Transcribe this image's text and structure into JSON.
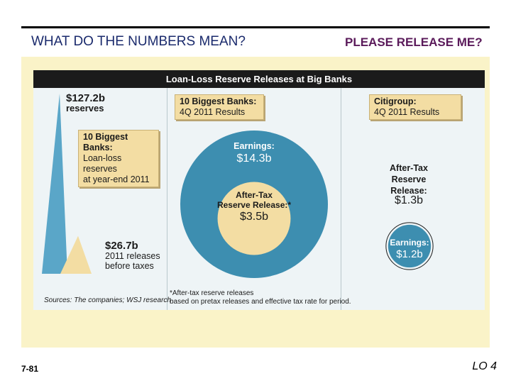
{
  "slide": {
    "left_title": "WHAT DO THE NUMBERS MEAN?",
    "right_title": "PLEASE RELEASE ME?",
    "page_number": "7-81",
    "lo": "LO 4"
  },
  "chart_data": {
    "type": "area",
    "title": "Loan-Loss Reserve Releases at Big Banks",
    "panels": [
      {
        "heading": [
          "10 Biggest Banks:",
          "Loan-loss reserves",
          "at year-end 2011"
        ],
        "series": [
          {
            "name": "reserves",
            "value": 127.2,
            "label": "$127.2b",
            "sublabel": "reserves",
            "color": "#5aa6c8"
          },
          {
            "name": "2011 releases before taxes",
            "value": 26.7,
            "label": "$26.7b",
            "sublabel": [
              "2011 releases",
              "before taxes"
            ],
            "color": "#f3dda3"
          }
        ]
      },
      {
        "heading": [
          "10 Biggest Banks:",
          "4Q 2011 Results"
        ],
        "outer": {
          "label": "Earnings:",
          "value": 14.3,
          "display": "$14.3b",
          "color": "#3d8eb0"
        },
        "inner": {
          "label": [
            "After-Tax",
            "Reserve Release:*"
          ],
          "value": 3.5,
          "display": "$3.5b",
          "color": "#f3dda3"
        }
      },
      {
        "heading": [
          "Citigroup:",
          "4Q 2011 Results"
        ],
        "release": {
          "label": [
            "After-Tax",
            "Reserve",
            "Release:"
          ],
          "value": 1.3,
          "display": "$1.3b"
        },
        "earnings": {
          "label": "Earnings:",
          "value": 1.2,
          "display": "$1.2b",
          "color": "#3d8eb0"
        }
      }
    ],
    "source": "Sources: The companies; WSJ research",
    "footnote": [
      "*After-tax reserve releases",
      "based on pretax releases and effective tax rate for period."
    ]
  }
}
